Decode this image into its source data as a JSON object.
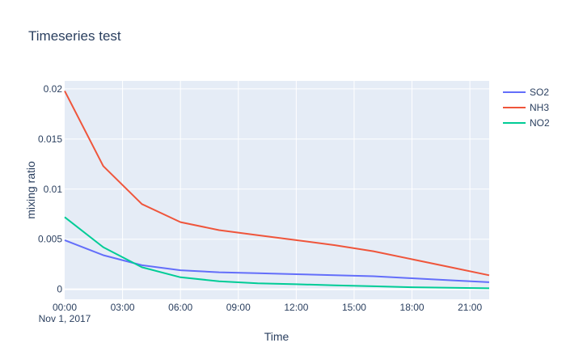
{
  "chart_data": {
    "type": "line",
    "title": "Timeseries test",
    "xlabel": "Time",
    "ylabel": "mixing ratio",
    "x_tick_labels": [
      "00:00",
      "03:00",
      "06:00",
      "09:00",
      "12:00",
      "15:00",
      "18:00",
      "21:00"
    ],
    "x_date_label": "Nov 1, 2017",
    "y_tick_labels": [
      "0",
      "0.005",
      "0.01",
      "0.015",
      "0.02"
    ],
    "xlim": [
      "2017-11-01 00:00",
      "2017-11-01 22:00"
    ],
    "ylim": [
      -0.001,
      0.0208
    ],
    "grid": true,
    "legend_position": "top-right",
    "x": [
      "2017-11-01 00:00",
      "2017-11-01 02:00",
      "2017-11-01 04:00",
      "2017-11-01 06:00",
      "2017-11-01 08:00",
      "2017-11-01 10:00",
      "2017-11-01 12:00",
      "2017-11-01 14:00",
      "2017-11-01 16:00",
      "2017-11-01 18:00",
      "2017-11-01 20:00",
      "2017-11-01 22:00"
    ],
    "series": [
      {
        "name": "SO2",
        "color": "#636efa",
        "values": [
          0.0049,
          0.0034,
          0.0024,
          0.0019,
          0.0017,
          0.0016,
          0.0015,
          0.0014,
          0.0013,
          0.0011,
          0.0009,
          0.0007
        ]
      },
      {
        "name": "NH3",
        "color": "#ef553b",
        "values": [
          0.0198,
          0.0123,
          0.0085,
          0.0067,
          0.0059,
          0.0054,
          0.0049,
          0.0044,
          0.0038,
          0.003,
          0.0022,
          0.0014
        ]
      },
      {
        "name": "NO2",
        "color": "#00cc96",
        "values": [
          0.0072,
          0.0042,
          0.0022,
          0.0012,
          0.0008,
          0.0006,
          0.0005,
          0.0004,
          0.0003,
          0.0002,
          0.00015,
          0.0001
        ]
      }
    ]
  }
}
